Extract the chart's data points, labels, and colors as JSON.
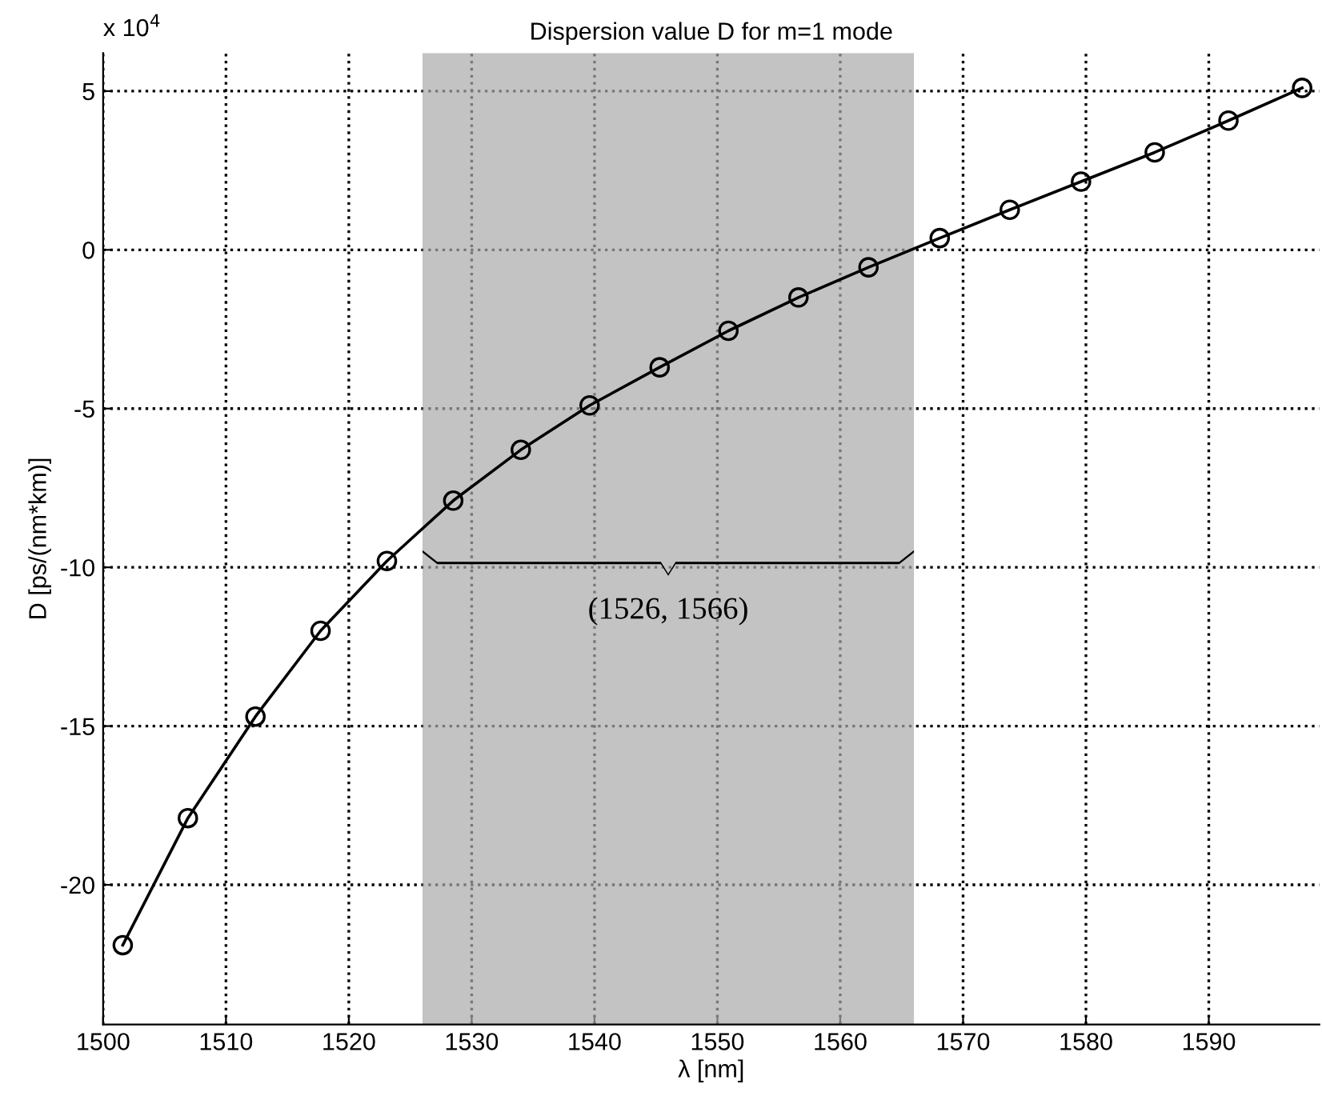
{
  "chart_data": {
    "type": "line",
    "title": "Dispersion value D for m=1 mode",
    "xlabel": "λ [nm]",
    "ylabel": "D [ps/(nm*km)]",
    "annotations": [
      "x 10$^{4}$"
    ],
    "x": [
      1501.6,
      1506.9,
      1512.4,
      1517.7,
      1523.1,
      1528.5,
      1534.0,
      1539.6,
      1545.3,
      1550.9,
      1556.6,
      1562.3,
      1568.1,
      1573.8,
      1579.6,
      1585.6,
      1591.6,
      1597.6
    ],
    "series": [
      {
        "color": "#000000",
        "values": [
          -21.9,
          -17.9,
          -14.7,
          -12.0,
          -9.8,
          -7.9,
          -6.3,
          -4.9,
          -3.7,
          -2.55,
          -1.5,
          -0.55,
          0.37,
          1.26,
          2.15,
          3.07,
          4.07,
          5.1
        ]
      }
    ],
    "xlim": [
      1500,
      1599
    ],
    "ylim": [
      -24.4,
      6.2
    ],
    "xticks": [
      1500,
      1510,
      1520,
      1530,
      1540,
      1550,
      1560,
      1570,
      1580,
      1590
    ],
    "yticks": [
      -20,
      -15,
      -10,
      -5,
      0,
      5
    ],
    "bands": [
      {
        "axis": "x",
        "from": 1526,
        "to": 1566,
        "label": "(1526, 1566)",
        "color": "#a9a9a9"
      }
    ],
    "grid": true,
    "marker": "circle",
    "line_style": "solid"
  }
}
